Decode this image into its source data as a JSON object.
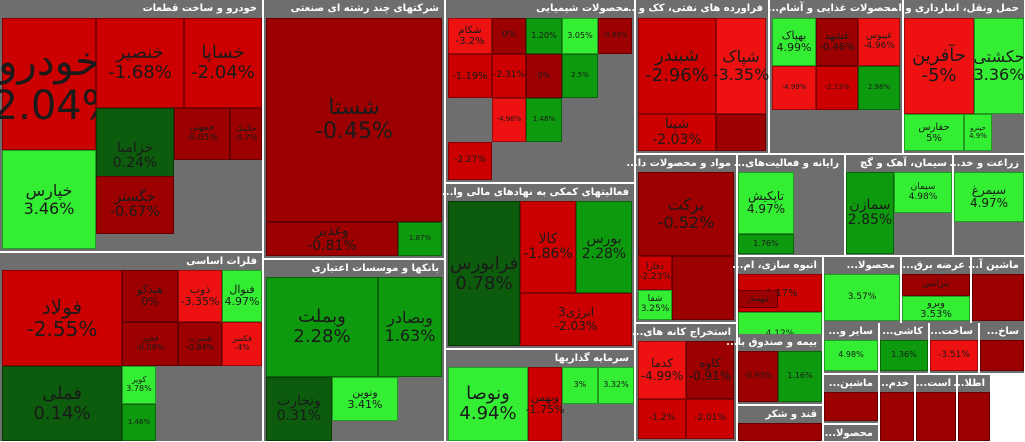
{
  "chart_data": {
    "type": "treemap",
    "colors": {
      "dark_red": "#9d0000",
      "red": "#cc0000",
      "bright_red": "#ee1111",
      "dark_green": "#0d5c0d",
      "green": "#0e9a0e",
      "bright_green": "#33ee33",
      "header": "#6e6e6e"
    },
    "sectors": [
      {
        "name": "خودرو و ساخت قطعات",
        "tiles": [
          {
            "symbol": "خودرو",
            "change": "-2.04%"
          },
          {
            "symbol": "خنصیر",
            "change": "-1.68%"
          },
          {
            "symbol": "خساپا",
            "change": "-2.04%"
          },
          {
            "symbol": "خزامیا",
            "change": "0.24%"
          },
          {
            "symbol": "خمهتی",
            "change": "-0.05%"
          },
          {
            "symbol": "خکمک",
            "change": "-0.7%"
          },
          {
            "symbol": "خگستر",
            "change": "-0.67%"
          },
          {
            "symbol": "خپارس",
            "change": "3.46%"
          }
        ]
      },
      {
        "name": "شرکتهای چند رشته ای صنعتی",
        "tiles": [
          {
            "symbol": "شستا",
            "change": "-0.45%"
          },
          {
            "symbol": "وغدیر",
            "change": "-0.81%"
          },
          {
            "symbol": "",
            "change": "1.87%"
          }
        ]
      },
      {
        "name": "محصولات شیمیایی",
        "tiles": [
          {
            "symbol": "شکام",
            "change": "-3.2%"
          },
          {
            "symbol": "",
            "change": "0%"
          },
          {
            "symbol": "",
            "change": "1.20%"
          },
          {
            "symbol": "",
            "change": "3.05%"
          },
          {
            "symbol": "",
            "change": "-0.94%"
          },
          {
            "symbol": "",
            "change": "-1.19%"
          },
          {
            "symbol": "",
            "change": "-2.31%"
          },
          {
            "symbol": "",
            "change": "0%"
          },
          {
            "symbol": "",
            "change": "2.5%"
          },
          {
            "symbol": "",
            "change": "-4.98%"
          },
          {
            "symbol": "",
            "change": "1.48%"
          },
          {
            "symbol": "",
            "change": "-2.27%"
          }
        ]
      },
      {
        "name": "فراورده های نفتی، کک و ...",
        "tiles": [
          {
            "symbol": "شبندر",
            "change": "-2.96%"
          },
          {
            "symbol": "شپاک",
            "change": "-3.35%"
          },
          {
            "symbol": "شپنا",
            "change": "-2.03%"
          },
          {
            "symbol": "",
            "change": ""
          }
        ]
      },
      {
        "name": "محصولات غذایی و آشام...",
        "tiles": [
          {
            "symbol": "بهپاک",
            "change": "4.99%"
          },
          {
            "symbol": "غشهد",
            "change": "-0.46%"
          },
          {
            "symbol": "غپیوس",
            "change": "-4.96%"
          },
          {
            "symbol": "",
            "change": "-4.99%"
          },
          {
            "symbol": "",
            "change": "-2.13%"
          },
          {
            "symbol": "",
            "change": "2.98%"
          }
        ]
      },
      {
        "name": "حمل ونقل، انبارداری و ا...",
        "tiles": [
          {
            "symbol": "حآفرین",
            "change": "-5%"
          },
          {
            "symbol": "حکشتی",
            "change": "3.36%"
          },
          {
            "symbol": "حفارس",
            "change": "5%"
          },
          {
            "symbol": "حپترو",
            "change": "4.9%"
          }
        ]
      },
      {
        "name": "فلزات اساسی",
        "tiles": [
          {
            "symbol": "فولاد",
            "change": "-2.55%"
          },
          {
            "symbol": "هیدکو",
            "change": "0%"
          },
          {
            "symbol": "ذوب",
            "change": "-3.35%"
          },
          {
            "symbol": "فنوال",
            "change": "4.97%"
          },
          {
            "symbol": "فخوز",
            "change": "-0.09%"
          },
          {
            "symbol": "فسرب",
            "change": "-0.84%"
          },
          {
            "symbol": "فکسر",
            "change": "-4%"
          },
          {
            "symbol": "فملی",
            "change": "0.14%"
          },
          {
            "symbol": "کویر",
            "change": "3.78%"
          },
          {
            "symbol": "",
            "change": "1.46%"
          }
        ]
      },
      {
        "name": "بانکها و موسسات اعتباری",
        "tiles": [
          {
            "symbol": "وبملت",
            "change": "2.28%"
          },
          {
            "symbol": "وبصادر",
            "change": "1.63%"
          },
          {
            "symbol": "ونوین",
            "change": "3.41%"
          },
          {
            "symbol": "وتجارت",
            "change": "0.31%"
          }
        ]
      },
      {
        "name": "فعالیتهای کمکی به نهادهای مالی وا...",
        "tiles": [
          {
            "symbol": "فرابورس",
            "change": "0.78%"
          },
          {
            "symbol": "کالا",
            "change": "-1.86%"
          },
          {
            "symbol": "بورس",
            "change": "2.28%"
          },
          {
            "symbol": "انرژی3",
            "change": "-2.03%"
          }
        ]
      },
      {
        "name": "سرمایه گذاریها",
        "tiles": [
          {
            "symbol": "ونوصا",
            "change": "4.94%"
          },
          {
            "symbol": "وبهمن",
            "change": "-1.75%"
          },
          {
            "symbol": "",
            "change": "3%"
          },
          {
            "symbol": "",
            "change": "3.32%"
          }
        ]
      },
      {
        "name": "مواد و محصولات دا...",
        "tiles": [
          {
            "symbol": "برکت",
            "change": "-0.52%"
          },
          {
            "symbol": "دفارا",
            "change": "-2.23%"
          },
          {
            "symbol": "شفا",
            "change": "3.25%"
          },
          {
            "symbol": "",
            "change": ""
          }
        ]
      },
      {
        "name": "رایانه و فعالیت‌های...",
        "tiles": [
          {
            "symbol": "تاپکیش",
            "change": "4.97%"
          },
          {
            "symbol": "",
            "change": "1.76%"
          }
        ]
      },
      {
        "name": "سیمان، آهک و گچ",
        "tiles": [
          {
            "symbol": "سمازن",
            "change": "2.85%"
          },
          {
            "symbol": "سیمان",
            "change": "4.98%"
          }
        ]
      },
      {
        "name": "زراعت و خد...",
        "tiles": [
          {
            "symbol": "سیمرغ",
            "change": "4.97%"
          }
        ]
      },
      {
        "name": "انبوه سازی، ام...",
        "tiles": [
          {
            "symbol": "",
            "change": "-1.17%"
          },
          {
            "symbol": "ثبهساز",
            "change": ""
          },
          {
            "symbol": "",
            "change": "4.12%"
          }
        ]
      },
      {
        "name": "محصولا...",
        "tiles": [
          {
            "symbol": "",
            "change": "3.57%"
          }
        ]
      },
      {
        "name": "عرضه برق...",
        "tiles": [
          {
            "symbol": "بترانس",
            "change": ""
          },
          {
            "symbol": "وبرو",
            "change": "3.53%"
          }
        ]
      },
      {
        "name": "ماشین آ...",
        "tiles": [
          {
            "symbol": "",
            "change": ""
          }
        ]
      },
      {
        "name": "استخراج کانه های...",
        "tiles": [
          {
            "symbol": "کدما",
            "change": "-4.99%"
          },
          {
            "symbol": "کاوه",
            "change": "-0.91%"
          },
          {
            "symbol": "",
            "change": "-1.2%"
          },
          {
            "symbol": "",
            "change": "-2.01%"
          }
        ]
      },
      {
        "name": "بیمه و صندوق با...",
        "tiles": [
          {
            "symbol": "",
            "change": "-0.93%"
          },
          {
            "symbol": "",
            "change": "1.16%"
          }
        ]
      },
      {
        "name": "سایر و...",
        "tiles": [
          {
            "symbol": "",
            "change": "4.98%"
          }
        ]
      },
      {
        "name": "کاشی...",
        "tiles": [
          {
            "symbol": "",
            "change": "1.36%"
          }
        ]
      },
      {
        "name": "ساخت...",
        "tiles": [
          {
            "symbol": "",
            "change": "-3.51%"
          }
        ]
      },
      {
        "name": "ساخ...",
        "tiles": [
          {
            "symbol": "",
            "change": ""
          }
        ]
      },
      {
        "name": "قند و شکر",
        "tiles": [
          {
            "symbol": "",
            "change": ""
          }
        ]
      },
      {
        "name": "ماشین...",
        "tiles": [
          {
            "symbol": "",
            "change": ""
          }
        ]
      },
      {
        "name": "خدم...",
        "tiles": [
          {
            "symbol": "",
            "change": ""
          }
        ]
      },
      {
        "name": "است...",
        "tiles": [
          {
            "symbol": "",
            "change": ""
          }
        ]
      },
      {
        "name": "اطلا...",
        "tiles": [
          {
            "symbol": "",
            "change": ""
          }
        ]
      },
      {
        "name": "محصولا...",
        "tiles": [
          {
            "symbol": "",
            "change": ""
          }
        ]
      }
    ]
  }
}
